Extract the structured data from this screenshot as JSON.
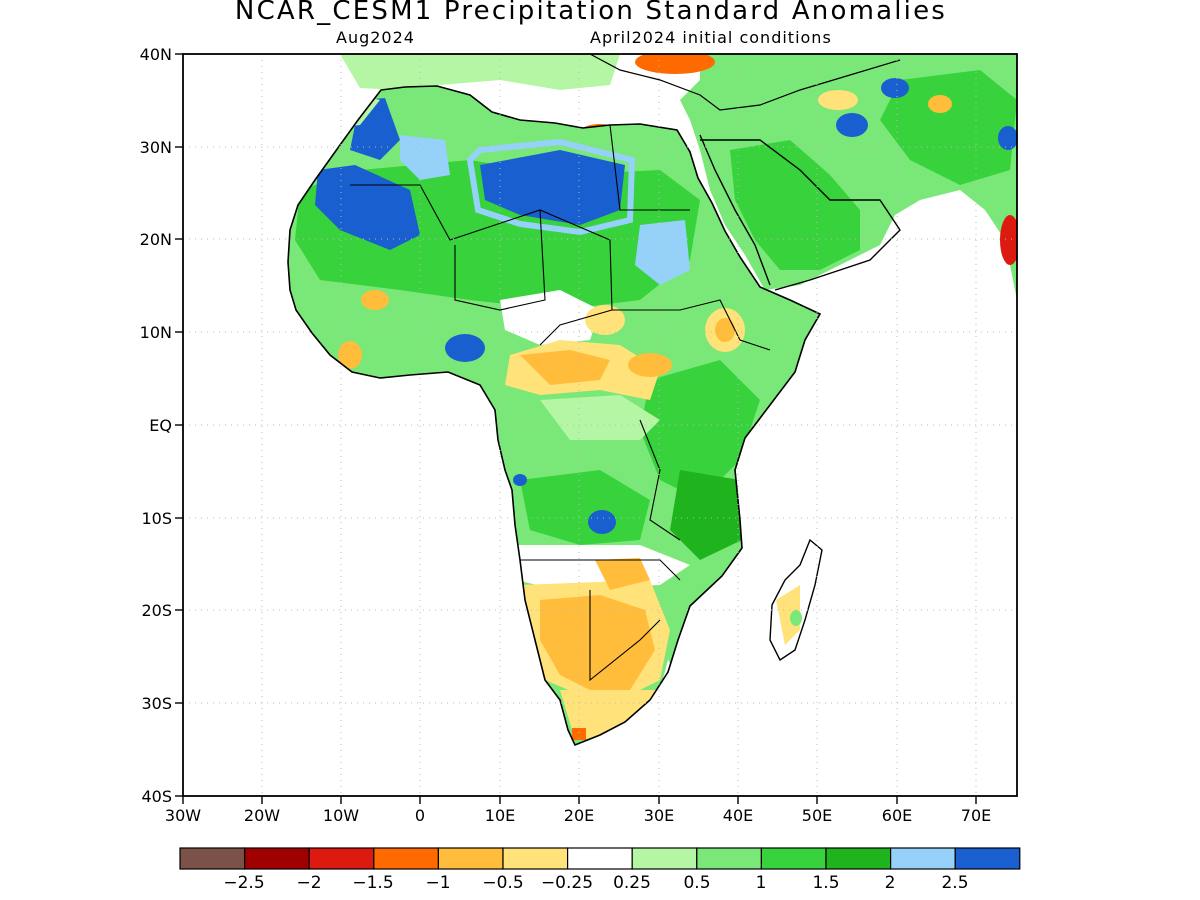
{
  "title": "NCAR_CESM1 Precipitation Standard Anomalies",
  "subtitle_left": "Aug2024",
  "subtitle_right": "April2024 initial conditions",
  "lat_labels": [
    "40N",
    "30N",
    "20N",
    "10N",
    "EQ",
    "10S",
    "20S",
    "30S",
    "40S"
  ],
  "lon_labels": [
    "30W",
    "20W",
    "10W",
    "0",
    "10E",
    "20E",
    "30E",
    "40E",
    "50E",
    "60E",
    "70E"
  ],
  "colorbar": {
    "colors": [
      "#7a5247",
      "#a00000",
      "#dd1a0f",
      "#ff6a00",
      "#ffbd3b",
      "#ffe279",
      "#ffffff",
      "#b4f6a4",
      "#7ae878",
      "#37d23c",
      "#1fb41e",
      "#96d1fa",
      "#1a5fcf"
    ],
    "labels": [
      "−2.5",
      "−2",
      "−1.5",
      "−1",
      "−0.5",
      "−0.25",
      "0.25",
      "0.5",
      "1",
      "1.5",
      "2",
      "2.5"
    ]
  },
  "map": {
    "lon_range": [
      -30,
      75
    ],
    "lat_range": [
      -40,
      40
    ],
    "land_fill": "#7ae878",
    "grid_color": "#bbbbbb",
    "coastline_color": "#000000"
  }
}
